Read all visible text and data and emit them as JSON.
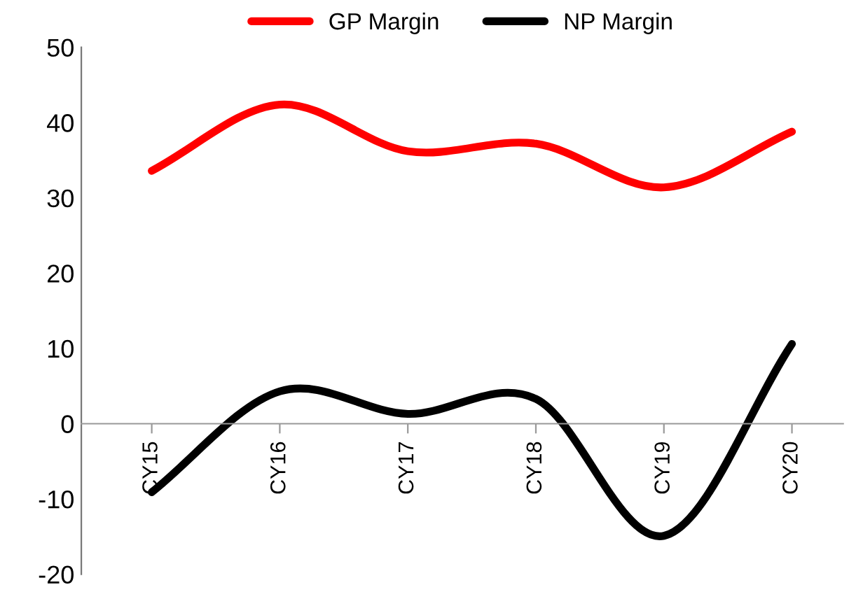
{
  "chart_data": {
    "type": "line",
    "categories": [
      "CY15",
      "CY16",
      "CY17",
      "CY18",
      "CY19",
      "CY20"
    ],
    "series": [
      {
        "name": "GP Margin",
        "color": "#ff0000",
        "values": [
          33.6,
          42.4,
          36.2,
          37.2,
          31.4,
          38.8
        ]
      },
      {
        "name": "NP Margin",
        "color": "#000000",
        "values": [
          -9.1,
          4.3,
          1.3,
          3.3,
          -14.9,
          10.6
        ]
      }
    ],
    "ylim": [
      -20,
      50
    ],
    "yticks": [
      -20,
      -10,
      0,
      10,
      20,
      30,
      40,
      50
    ],
    "grid": false,
    "legend": "top",
    "marker": "none",
    "line_style": "solid"
  }
}
